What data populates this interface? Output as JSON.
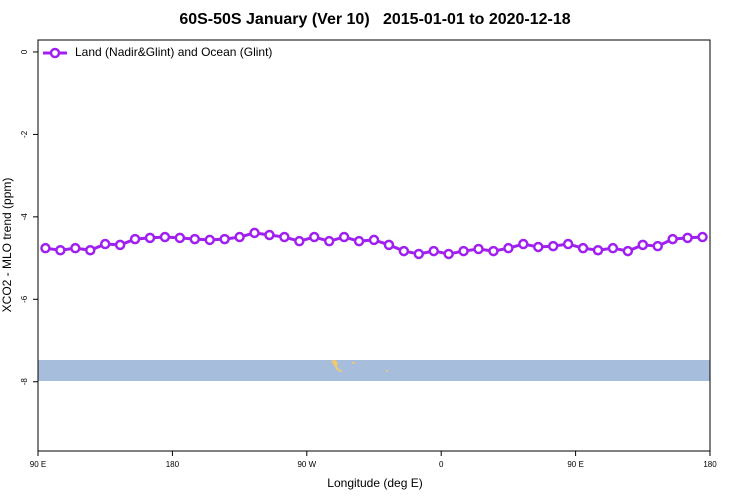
{
  "chart_data": {
    "type": "line",
    "title": "60S-50S January (Ver 10)   2015-01-01 to 2020-12-18",
    "x_label": "Longitude (deg E)",
    "y_label": "XCO2 - MLO trend (ppm)",
    "x": [
      95,
      105,
      115,
      125,
      135,
      145,
      155,
      165,
      175,
      185,
      195,
      205,
      215,
      225,
      235,
      245,
      255,
      265,
      275,
      285,
      295,
      305,
      315,
      325,
      335,
      345,
      355,
      365,
      375,
      385,
      395,
      405,
      415,
      425,
      435,
      445,
      455,
      465,
      475,
      485,
      495,
      505,
      515,
      525,
      535
    ],
    "series": [
      {
        "name": "Land (Nadir&Glint) and Ocean (Glint)",
        "color": "#a020f0",
        "values": [
          -4.76,
          -4.81,
          -4.76,
          -4.81,
          -4.66,
          -4.68,
          -4.54,
          -4.51,
          -4.49,
          -4.51,
          -4.54,
          -4.56,
          -4.54,
          -4.49,
          -4.39,
          -4.44,
          -4.49,
          -4.59,
          -4.49,
          -4.59,
          -4.49,
          -4.59,
          -4.56,
          -4.68,
          -4.83,
          -4.9,
          -4.83,
          -4.9,
          -4.83,
          -4.78,
          -4.83,
          -4.76,
          -4.66,
          -4.73,
          -4.71,
          -4.66,
          -4.76,
          -4.81,
          -4.76,
          -4.83,
          -4.68,
          -4.71,
          -4.54,
          -4.51,
          -4.49
        ]
      }
    ],
    "xlim": [
      90,
      540
    ],
    "xticks": [
      {
        "value": 90,
        "label": "90 E"
      },
      {
        "value": 180,
        "label": "180"
      },
      {
        "value": 270,
        "label": "90 W"
      },
      {
        "value": 360,
        "label": "0"
      },
      {
        "value": 450,
        "label": "90 E"
      },
      {
        "value": 540,
        "label": "180"
      }
    ],
    "ylim": [
      -9.68,
      0.29
    ],
    "yticks": [
      0,
      -2,
      -4,
      -6,
      -8
    ],
    "legend": "top-left"
  }
}
